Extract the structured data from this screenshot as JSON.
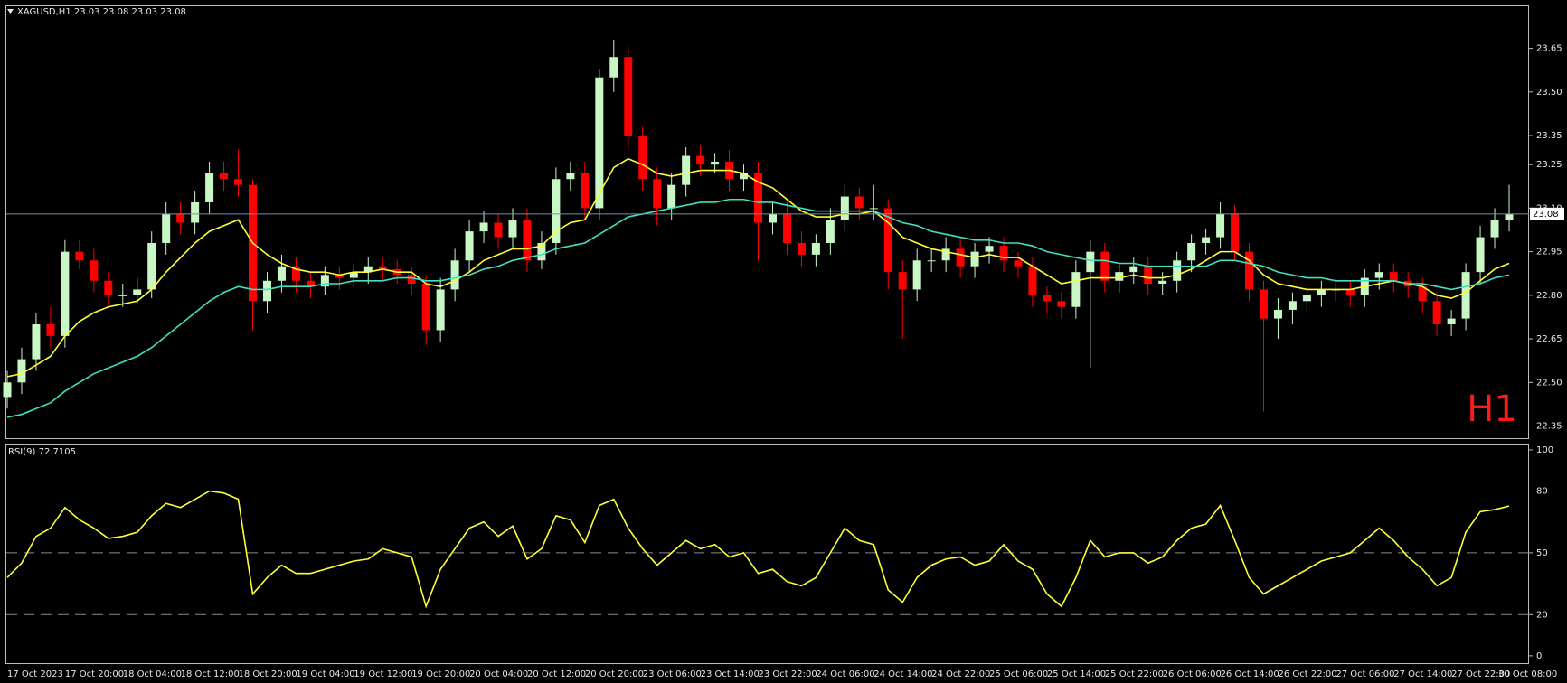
{
  "chart_data": [
    {
      "type": "candlestick",
      "title": "XAGUSD,H1  23.03 23.08 23.03 23.08",
      "timeframe_label": "H1",
      "categories": [
        "17 Oct 2023",
        null,
        null,
        null,
        "17 Oct 20:00",
        null,
        null,
        null,
        "18 Oct 04:00",
        null,
        null,
        null,
        "18 Oct 12:00",
        null,
        null,
        null,
        "18 Oct 20:00",
        null,
        null,
        null,
        "19 Oct 04:00",
        null,
        null,
        null,
        "19 Oct 12:00",
        null,
        null,
        null,
        "19 Oct 20:00",
        null,
        null,
        null,
        "20 Oct 04:00",
        null,
        null,
        null,
        "20 Oct 12:00",
        null,
        null,
        null,
        "20 Oct 20:00",
        null,
        null,
        null,
        "23 Oct 06:00",
        null,
        null,
        null,
        "23 Oct 14:00",
        null,
        null,
        null,
        "23 Oct 22:00",
        null,
        null,
        null,
        "24 Oct 06:00",
        null,
        null,
        null,
        "24 Oct 14:00",
        null,
        null,
        null,
        "24 Oct 22:00",
        null,
        null,
        null,
        "25 Oct 06:00",
        null,
        null,
        null,
        "25 Oct 14:00",
        null,
        null,
        null,
        "25 Oct 22:00",
        null,
        null,
        null,
        "26 Oct 06:00",
        null,
        null,
        null,
        "26 Oct 14:00",
        null,
        null,
        null,
        "26 Oct 22:00",
        null,
        null,
        null,
        "27 Oct 06:00",
        null,
        null,
        null,
        "27 Oct 14:00",
        null,
        null,
        null,
        "27 Oct 22:00",
        null,
        null,
        null,
        "30 Oct 08:00"
      ],
      "open": [
        22.45,
        22.5,
        22.58,
        22.7,
        22.66,
        22.95,
        22.92,
        22.85,
        22.8,
        22.8,
        22.82,
        22.98,
        23.08,
        23.05,
        23.12,
        23.22,
        23.2,
        23.18,
        22.78,
        22.85,
        22.9,
        22.85,
        22.83,
        22.87,
        22.86,
        22.88,
        22.9,
        22.89,
        22.87,
        22.84,
        22.68,
        22.82,
        22.92,
        23.02,
        23.05,
        23.0,
        23.06,
        22.92,
        22.98,
        23.2,
        23.22,
        23.1,
        23.55,
        23.62,
        23.35,
        23.2,
        23.1,
        23.18,
        23.28,
        23.25,
        23.26,
        23.2,
        23.22,
        23.05,
        23.08,
        22.98,
        22.94,
        22.98,
        23.06,
        23.14,
        23.1,
        23.1,
        22.88,
        22.82,
        22.92,
        22.92,
        22.96,
        22.9,
        22.95,
        22.97,
        22.92,
        22.9,
        22.8,
        22.78,
        22.76,
        22.88,
        22.95,
        22.85,
        22.88,
        22.9,
        22.84,
        22.85,
        22.92,
        22.98,
        23.0,
        23.08,
        22.95,
        22.82,
        22.72,
        22.75,
        22.78,
        22.8,
        22.82,
        22.82,
        22.8,
        22.86,
        22.88,
        22.85,
        22.83,
        22.78,
        22.7,
        22.72,
        22.88,
        23.0,
        23.06
      ],
      "high": [
        22.54,
        22.62,
        22.74,
        22.76,
        22.99,
        22.99,
        22.96,
        22.88,
        22.84,
        22.86,
        23.02,
        23.12,
        23.12,
        23.16,
        23.26,
        23.26,
        23.3,
        23.2,
        22.88,
        22.94,
        22.93,
        22.88,
        22.9,
        22.9,
        22.91,
        22.93,
        22.93,
        22.92,
        22.9,
        22.87,
        22.86,
        22.96,
        23.06,
        23.09,
        23.08,
        23.1,
        23.1,
        23.02,
        23.24,
        23.26,
        23.26,
        23.58,
        23.68,
        23.66,
        23.38,
        23.24,
        23.22,
        23.31,
        23.32,
        23.29,
        23.3,
        23.25,
        23.26,
        23.12,
        23.12,
        23.02,
        23.01,
        23.1,
        23.18,
        23.17,
        23.18,
        23.13,
        22.92,
        22.96,
        22.96,
        23.0,
        23.0,
        22.98,
        23.0,
        23.0,
        22.95,
        22.93,
        22.83,
        22.81,
        22.92,
        22.99,
        22.98,
        22.91,
        22.93,
        22.93,
        22.88,
        22.95,
        23.01,
        23.03,
        23.12,
        23.11,
        22.98,
        22.85,
        22.79,
        22.81,
        22.83,
        22.85,
        22.85,
        22.85,
        22.89,
        22.91,
        22.91,
        22.88,
        22.86,
        22.81,
        22.75,
        22.91,
        23.04,
        23.1,
        23.18
      ],
      "low": [
        22.41,
        22.46,
        22.54,
        22.62,
        22.62,
        22.89,
        22.81,
        22.76,
        22.76,
        22.77,
        22.79,
        22.94,
        23.01,
        23.01,
        23.08,
        23.16,
        23.14,
        22.68,
        22.74,
        22.81,
        22.81,
        22.79,
        22.8,
        22.82,
        22.83,
        22.84,
        22.85,
        22.84,
        22.8,
        22.63,
        22.64,
        22.78,
        22.88,
        22.98,
        22.96,
        22.96,
        22.88,
        22.89,
        22.94,
        23.16,
        23.06,
        23.06,
        23.5,
        23.3,
        23.16,
        23.04,
        23.06,
        23.14,
        23.21,
        23.22,
        23.16,
        23.16,
        22.92,
        23.01,
        22.94,
        22.9,
        22.9,
        22.94,
        23.02,
        23.06,
        23.06,
        22.82,
        22.65,
        22.78,
        22.88,
        22.88,
        22.86,
        22.86,
        22.91,
        22.88,
        22.86,
        22.76,
        22.74,
        22.72,
        22.72,
        22.55,
        22.81,
        22.81,
        22.84,
        22.8,
        22.8,
        22.81,
        22.88,
        22.94,
        22.96,
        22.92,
        22.78,
        22.4,
        22.65,
        22.7,
        22.74,
        22.76,
        22.78,
        22.76,
        22.76,
        22.82,
        22.81,
        22.79,
        22.74,
        22.66,
        22.66,
        22.68,
        22.84,
        22.96,
        23.02
      ],
      "close": [
        22.5,
        22.58,
        22.7,
        22.66,
        22.95,
        22.92,
        22.85,
        22.8,
        22.8,
        22.82,
        22.98,
        23.08,
        23.05,
        23.12,
        23.22,
        23.2,
        23.18,
        22.78,
        22.85,
        22.9,
        22.85,
        22.83,
        22.87,
        22.86,
        22.88,
        22.9,
        22.89,
        22.87,
        22.84,
        22.68,
        22.82,
        22.92,
        23.02,
        23.05,
        23.0,
        23.06,
        22.92,
        22.98,
        23.2,
        23.22,
        23.1,
        23.55,
        23.62,
        23.35,
        23.2,
        23.1,
        23.18,
        23.28,
        23.25,
        23.26,
        23.2,
        23.22,
        23.05,
        23.08,
        22.98,
        22.94,
        22.98,
        23.06,
        23.14,
        23.1,
        23.1,
        22.88,
        22.82,
        22.92,
        22.92,
        22.96,
        22.9,
        22.95,
        22.97,
        22.92,
        22.9,
        22.8,
        22.78,
        22.76,
        22.88,
        22.95,
        22.85,
        22.88,
        22.9,
        22.84,
        22.85,
        22.92,
        22.98,
        23.0,
        23.08,
        22.95,
        22.82,
        22.72,
        22.75,
        22.78,
        22.8,
        22.82,
        22.82,
        22.8,
        22.86,
        22.88,
        22.85,
        22.83,
        22.78,
        22.7,
        22.72,
        22.88,
        23.0,
        23.06,
        23.08
      ],
      "up_color": "#c8f7c5",
      "down_color": "#ff0000",
      "overlays": [
        {
          "color": "#ffff33",
          "values": [
            22.52,
            22.53,
            22.56,
            22.59,
            22.66,
            22.71,
            22.74,
            22.76,
            22.77,
            22.78,
            22.82,
            22.88,
            22.93,
            22.98,
            23.02,
            23.04,
            23.06,
            22.98,
            22.94,
            22.91,
            22.89,
            22.88,
            22.88,
            22.87,
            22.88,
            22.88,
            22.89,
            22.88,
            22.88,
            22.84,
            22.83,
            22.85,
            22.88,
            22.92,
            22.94,
            22.96,
            22.96,
            22.97,
            23.02,
            23.05,
            23.06,
            23.15,
            23.24,
            23.27,
            23.25,
            23.22,
            23.21,
            23.22,
            23.23,
            23.23,
            23.23,
            23.22,
            23.19,
            23.17,
            23.13,
            23.09,
            23.07,
            23.07,
            23.08,
            23.08,
            23.09,
            23.05,
            23.0,
            22.98,
            22.96,
            22.95,
            22.94,
            22.93,
            22.94,
            22.93,
            22.93,
            22.9,
            22.87,
            22.84,
            22.85,
            22.86,
            22.86,
            22.86,
            22.87,
            22.86,
            22.86,
            22.87,
            22.89,
            22.92,
            22.95,
            22.95,
            22.92,
            22.87,
            22.84,
            22.83,
            22.82,
            22.82,
            22.82,
            22.82,
            22.83,
            22.84,
            22.85,
            22.84,
            22.83,
            22.8,
            22.79,
            22.81,
            22.85,
            22.89,
            22.91
          ]
        },
        {
          "color": "#40e0c0",
          "values": [
            22.38,
            22.39,
            22.41,
            22.43,
            22.47,
            22.5,
            22.53,
            22.55,
            22.57,
            22.59,
            22.62,
            22.66,
            22.7,
            22.74,
            22.78,
            22.81,
            22.83,
            22.82,
            22.82,
            22.83,
            22.83,
            22.83,
            22.84,
            22.84,
            22.85,
            22.85,
            22.85,
            22.86,
            22.86,
            22.85,
            22.85,
            22.86,
            22.87,
            22.89,
            22.9,
            22.92,
            22.93,
            22.94,
            22.96,
            22.97,
            22.98,
            23.01,
            23.04,
            23.07,
            23.08,
            23.09,
            23.1,
            23.11,
            23.12,
            23.12,
            23.13,
            23.13,
            23.12,
            23.12,
            23.11,
            23.1,
            23.09,
            23.09,
            23.09,
            23.09,
            23.09,
            23.07,
            23.05,
            23.04,
            23.02,
            23.01,
            23.0,
            22.99,
            22.99,
            22.98,
            22.98,
            22.97,
            22.95,
            22.94,
            22.93,
            22.92,
            22.92,
            22.91,
            22.91,
            22.9,
            22.9,
            22.9,
            22.9,
            22.9,
            22.92,
            22.92,
            22.91,
            22.9,
            22.88,
            22.87,
            22.86,
            22.86,
            22.85,
            22.85,
            22.85,
            22.85,
            22.85,
            22.84,
            22.84,
            22.83,
            22.82,
            22.83,
            22.84,
            22.86,
            22.87
          ]
        }
      ],
      "ylim": [
        22.305,
        23.798
      ],
      "yticks": [
        23.65,
        {
          "value": 23.5,
          "label": "23.50"
        },
        23.35,
        23.25,
        {
          "value": 23.1,
          "label": "23.10"
        },
        22.95,
        {
          "value": 22.8,
          "label": "22.80"
        },
        22.65,
        {
          "value": 22.5,
          "label": "22.50"
        },
        22.35
      ],
      "price_line": {
        "value": 23.08,
        "label": "23.08"
      },
      "price_line_color": "#7890a8"
    },
    {
      "type": "line",
      "title": "RSI(9) 72.7105",
      "color": "#ffff33",
      "values": [
        38,
        45,
        58,
        62,
        72,
        66,
        62,
        57,
        58,
        60,
        68,
        74,
        72,
        76,
        80,
        79,
        76,
        30,
        38,
        44,
        40,
        40,
        42,
        44,
        46,
        47,
        52,
        50,
        48,
        24,
        42,
        52,
        62,
        65,
        58,
        63,
        47,
        52,
        68,
        66,
        55,
        73,
        76,
        62,
        52,
        44,
        50,
        56,
        52,
        54,
        48,
        50,
        40,
        42,
        36,
        34,
        38,
        50,
        62,
        56,
        54,
        32,
        26,
        38,
        44,
        47,
        48,
        44,
        46,
        54,
        46,
        42,
        30,
        24,
        38,
        56,
        48,
        50,
        50,
        45,
        48,
        56,
        62,
        64,
        73,
        56,
        38,
        30,
        34,
        38,
        42,
        46,
        48,
        50,
        56,
        62,
        56,
        48,
        42,
        34,
        38,
        60,
        70,
        71,
        72.7105
      ],
      "ylim": [
        -4,
        102.6
      ],
      "yticks": [
        100,
        80,
        50,
        20,
        0
      ],
      "levels": [
        80,
        50,
        20
      ]
    }
  ]
}
